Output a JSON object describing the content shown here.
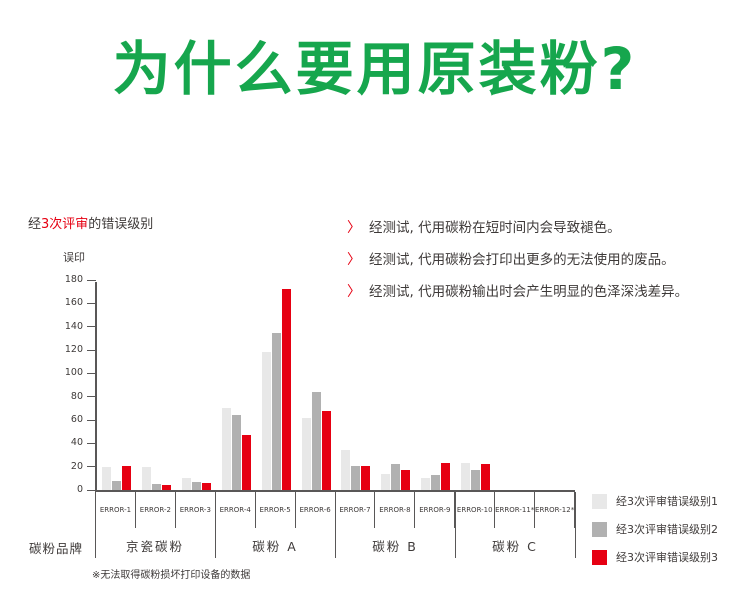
{
  "title": "为什么要用原装粉?",
  "colors": {
    "title_green": "#16a64d",
    "accent_red": "#e60012",
    "axis_gray": "#595757",
    "text_dark": "#3e3a39",
    "bar_level1": "#e8e8e8",
    "bar_level2": "#b1b1b1",
    "bar_level3": "#e60012"
  },
  "bullets": [
    {
      "text": "经测试, 代用碳粉在短时间内会导致褪色。"
    },
    {
      "text": "经测试, 代用碳粉会打印出更多的无法使用的废品。"
    },
    {
      "text": "经测试, 代用碳粉输出时会产生明显的色泽深浅差异。"
    }
  ],
  "chart_data": {
    "type": "bar",
    "title_parts": {
      "prefix": "经",
      "highlight": "3次评审",
      "suffix": "的错误级别"
    },
    "title_full": "经3次评审的错误级别",
    "ylabel": "误印",
    "xlabel": "",
    "ylim": [
      0,
      180
    ],
    "ytick_step": 20,
    "grid": false,
    "legend_position": "bottom-right",
    "categories": [
      "ERROR-1",
      "ERROR-2",
      "ERROR-3",
      "ERROR-4",
      "ERROR-5",
      "ERROR-6",
      "ERROR-7",
      "ERROR-8",
      "ERROR-9",
      "ERROR-10",
      "ERROR-11*",
      "ERROR-12*"
    ],
    "series": [
      {
        "name": "经3次评审错误级别1",
        "color": "#e8e8e8",
        "values": [
          20,
          20,
          10,
          70,
          118,
          62,
          34,
          14,
          10,
          23,
          0,
          0
        ]
      },
      {
        "name": "经3次评审错误级别2",
        "color": "#b1b1b1",
        "values": [
          8,
          5,
          7,
          64,
          135,
          84,
          21,
          22,
          13,
          17,
          0,
          0
        ]
      },
      {
        "name": "经3次评审错误级别3",
        "color": "#e60012",
        "values": [
          21,
          4,
          6,
          47,
          172,
          68,
          21,
          17,
          23,
          22,
          0,
          0
        ]
      }
    ],
    "groups": [
      {
        "label": "京瓷碳粉",
        "span": 3
      },
      {
        "label": "碳粉 A",
        "span": 3
      },
      {
        "label": "碳粉 B",
        "span": 3
      },
      {
        "label": "碳粉 C",
        "span": 3
      }
    ],
    "group_axis_label": "碳粉品牌",
    "footnote": "※无法取得碳粉损坏打印设备的数据"
  }
}
